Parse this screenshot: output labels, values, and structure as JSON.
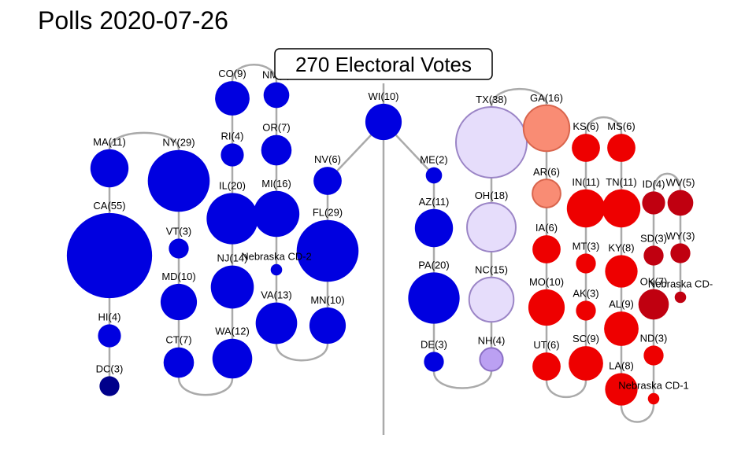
{
  "title": "Polls 2020-07-26",
  "center_label": "270 Electoral Votes",
  "colors": {
    "link": "#aaaaaa",
    "center_line": "#aaaaaa",
    "safe_dem": "#0000e0",
    "dark_dem": "#00008b",
    "lean_rep_light": "#e6ddfb",
    "tossup": "#bba0f2",
    "lean_rep": "#f98c74",
    "safe_rep": "#ee0000",
    "strong_rep": "#c00010"
  },
  "states": [
    {
      "label": "CA(55)",
      "ev": 55,
      "color": "safe_dem"
    },
    {
      "label": "MA(11)",
      "ev": 11,
      "color": "safe_dem"
    },
    {
      "label": "NY(29)",
      "ev": 29,
      "color": "safe_dem"
    },
    {
      "label": "VT(3)",
      "ev": 3,
      "color": "safe_dem"
    },
    {
      "label": "MD(10)",
      "ev": 10,
      "color": "safe_dem"
    },
    {
      "label": "CT(7)",
      "ev": 7,
      "color": "safe_dem"
    },
    {
      "label": "HI(4)",
      "ev": 4,
      "color": "safe_dem"
    },
    {
      "label": "DC(3)",
      "ev": 3,
      "color": "dark_dem"
    },
    {
      "label": "CO(9)",
      "ev": 9,
      "color": "safe_dem"
    },
    {
      "label": "RI(4)",
      "ev": 4,
      "color": "safe_dem"
    },
    {
      "label": "IL(20)",
      "ev": 20,
      "color": "safe_dem"
    },
    {
      "label": "NJ(14)",
      "ev": 14,
      "color": "safe_dem"
    },
    {
      "label": "WA(12)",
      "ev": 12,
      "color": "safe_dem"
    },
    {
      "label": "NM(5)",
      "ev": 5,
      "color": "safe_dem"
    },
    {
      "label": "OR(7)",
      "ev": 7,
      "color": "safe_dem"
    },
    {
      "label": "MI(16)",
      "ev": 16,
      "color": "safe_dem"
    },
    {
      "label": "Nebraska CD-2",
      "ev": 1,
      "color": "safe_dem"
    },
    {
      "label": "VA(13)",
      "ev": 13,
      "color": "safe_dem"
    },
    {
      "label": "NV(6)",
      "ev": 6,
      "color": "safe_dem"
    },
    {
      "label": "FL(29)",
      "ev": 29,
      "color": "safe_dem"
    },
    {
      "label": "MN(10)",
      "ev": 10,
      "color": "safe_dem"
    },
    {
      "label": "WI(10)",
      "ev": 10,
      "color": "safe_dem"
    },
    {
      "label": "ME(2)",
      "ev": 2,
      "color": "safe_dem"
    },
    {
      "label": "AZ(11)",
      "ev": 11,
      "color": "safe_dem"
    },
    {
      "label": "PA(20)",
      "ev": 20,
      "color": "safe_dem"
    },
    {
      "label": "DE(3)",
      "ev": 3,
      "color": "safe_dem"
    },
    {
      "label": "TX(38)",
      "ev": 38,
      "color": "lean_rep_light"
    },
    {
      "label": "OH(18)",
      "ev": 18,
      "color": "lean_rep_light"
    },
    {
      "label": "NC(15)",
      "ev": 15,
      "color": "lean_rep_light"
    },
    {
      "label": "NH(4)",
      "ev": 4,
      "color": "tossup"
    },
    {
      "label": "GA(16)",
      "ev": 16,
      "color": "lean_rep"
    },
    {
      "label": "AR(6)",
      "ev": 6,
      "color": "lean_rep"
    },
    {
      "label": "IA(6)",
      "ev": 6,
      "color": "safe_rep"
    },
    {
      "label": "MO(10)",
      "ev": 10,
      "color": "safe_rep"
    },
    {
      "label": "UT(6)",
      "ev": 6,
      "color": "safe_rep"
    },
    {
      "label": "KS(6)",
      "ev": 6,
      "color": "safe_rep"
    },
    {
      "label": "IN(11)",
      "ev": 11,
      "color": "safe_rep"
    },
    {
      "label": "MT(3)",
      "ev": 3,
      "color": "safe_rep"
    },
    {
      "label": "AK(3)",
      "ev": 3,
      "color": "safe_rep"
    },
    {
      "label": "SC(9)",
      "ev": 9,
      "color": "safe_rep"
    },
    {
      "label": "MS(6)",
      "ev": 6,
      "color": "safe_rep"
    },
    {
      "label": "TN(11)",
      "ev": 11,
      "color": "safe_rep"
    },
    {
      "label": "KY(8)",
      "ev": 8,
      "color": "safe_rep"
    },
    {
      "label": "AL(9)",
      "ev": 9,
      "color": "safe_rep"
    },
    {
      "label": "LA(8)",
      "ev": 8,
      "color": "safe_rep"
    },
    {
      "label": "ID(4)",
      "ev": 4,
      "color": "strong_rep"
    },
    {
      "label": "SD(3)",
      "ev": 3,
      "color": "strong_rep"
    },
    {
      "label": "OK(7)",
      "ev": 7,
      "color": "strong_rep"
    },
    {
      "label": "ND(3)",
      "ev": 3,
      "color": "safe_rep"
    },
    {
      "label": "Nebraska CD-1",
      "ev": 1,
      "color": "safe_rep"
    },
    {
      "label": "WV(5)",
      "ev": 5,
      "color": "strong_rep"
    },
    {
      "label": "WY(3)",
      "ev": 3,
      "color": "strong_rep"
    },
    {
      "label": "Nebraska CD-",
      "ev": 1,
      "color": "strong_rep"
    }
  ]
}
